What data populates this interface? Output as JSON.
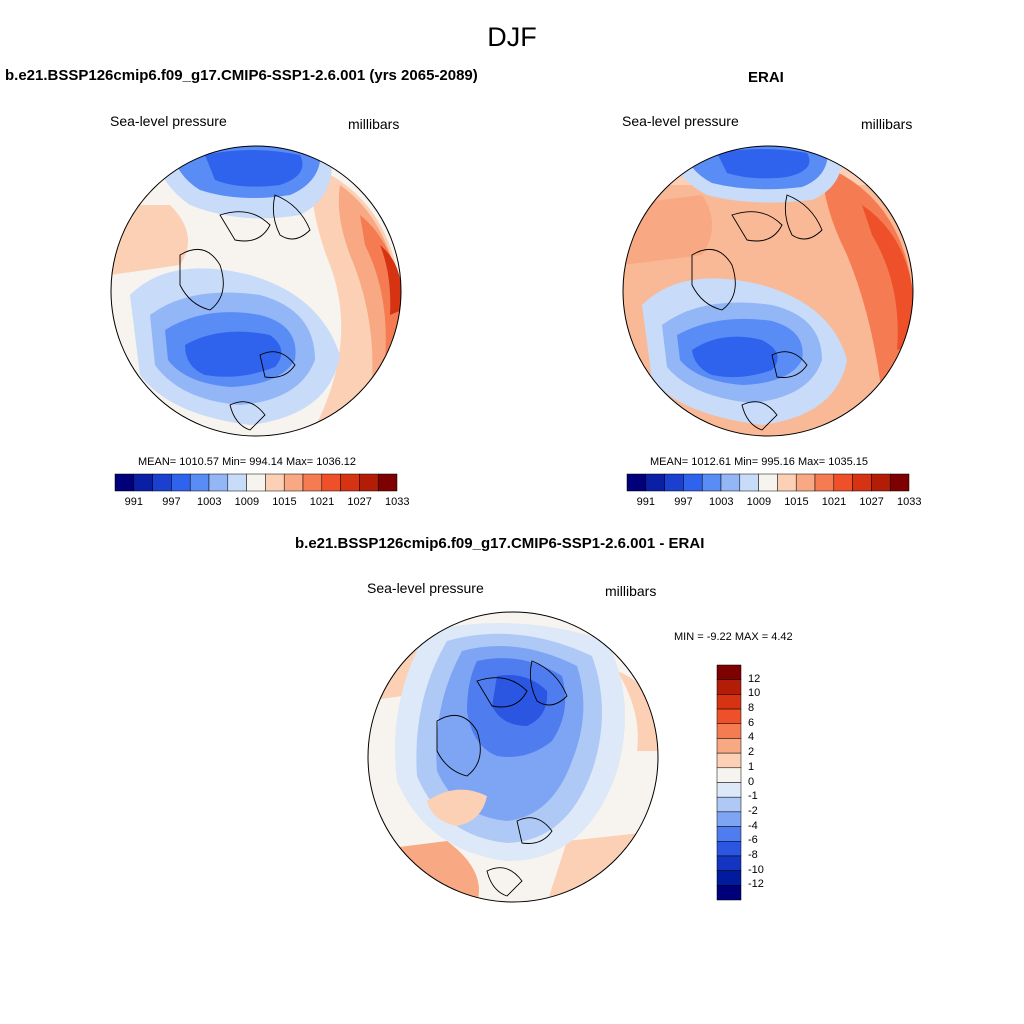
{
  "page_title": "DJF",
  "panels": [
    {
      "title": "b.e21.BSSP126cmip6.f09_g17.CMIP6-SSP1-2.6.001 (yrs 2065-2089)",
      "left_label": "Sea-level pressure",
      "right_label": "millibars",
      "stats": "MEAN= 1010.57  Min= 994.14  Max= 1036.12"
    },
    {
      "title": "ERAI",
      "left_label": "Sea-level pressure",
      "right_label": "millibars",
      "stats": "MEAN= 1012.61  Min= 995.16  Max= 1035.15"
    },
    {
      "title": "b.e21.BSSP126cmip6.f09_g17.CMIP6-SSP1-2.6.001 - ERAI",
      "left_label": "Sea-level pressure",
      "right_label": "millibars",
      "stats": "MIN =  -9.22 MAX =   4.42"
    }
  ],
  "colorbar_abs": {
    "labels": [
      "991",
      "997",
      "1003",
      "1009",
      "1015",
      "1021",
      "1027",
      "1033"
    ],
    "colors": [
      "#00007a",
      "#0a1ea6",
      "#1b3fd0",
      "#2f63ee",
      "#5a8cf5",
      "#93b6f7",
      "#c8dbf9",
      "#f7f3ee",
      "#fbd0b4",
      "#f8a882",
      "#f57c52",
      "#ee5129",
      "#d63312",
      "#b31d07",
      "#7f0000"
    ]
  },
  "colorbar_diff": {
    "labels": [
      "12",
      "10",
      "8",
      "6",
      "4",
      "2",
      "1",
      "0",
      "-1",
      "-2",
      "-4",
      "-6",
      "-8",
      "-10",
      "-12"
    ],
    "colors": [
      "#7f0000",
      "#b31d07",
      "#d63312",
      "#ee5129",
      "#f57c52",
      "#f8a882",
      "#fbd0b4",
      "#f7f3ee",
      "#dde8f8",
      "#aec9f6",
      "#7ea5f4",
      "#4f7df0",
      "#2a56e2",
      "#1434c2",
      "#001b9e",
      "#00007a"
    ]
  }
}
